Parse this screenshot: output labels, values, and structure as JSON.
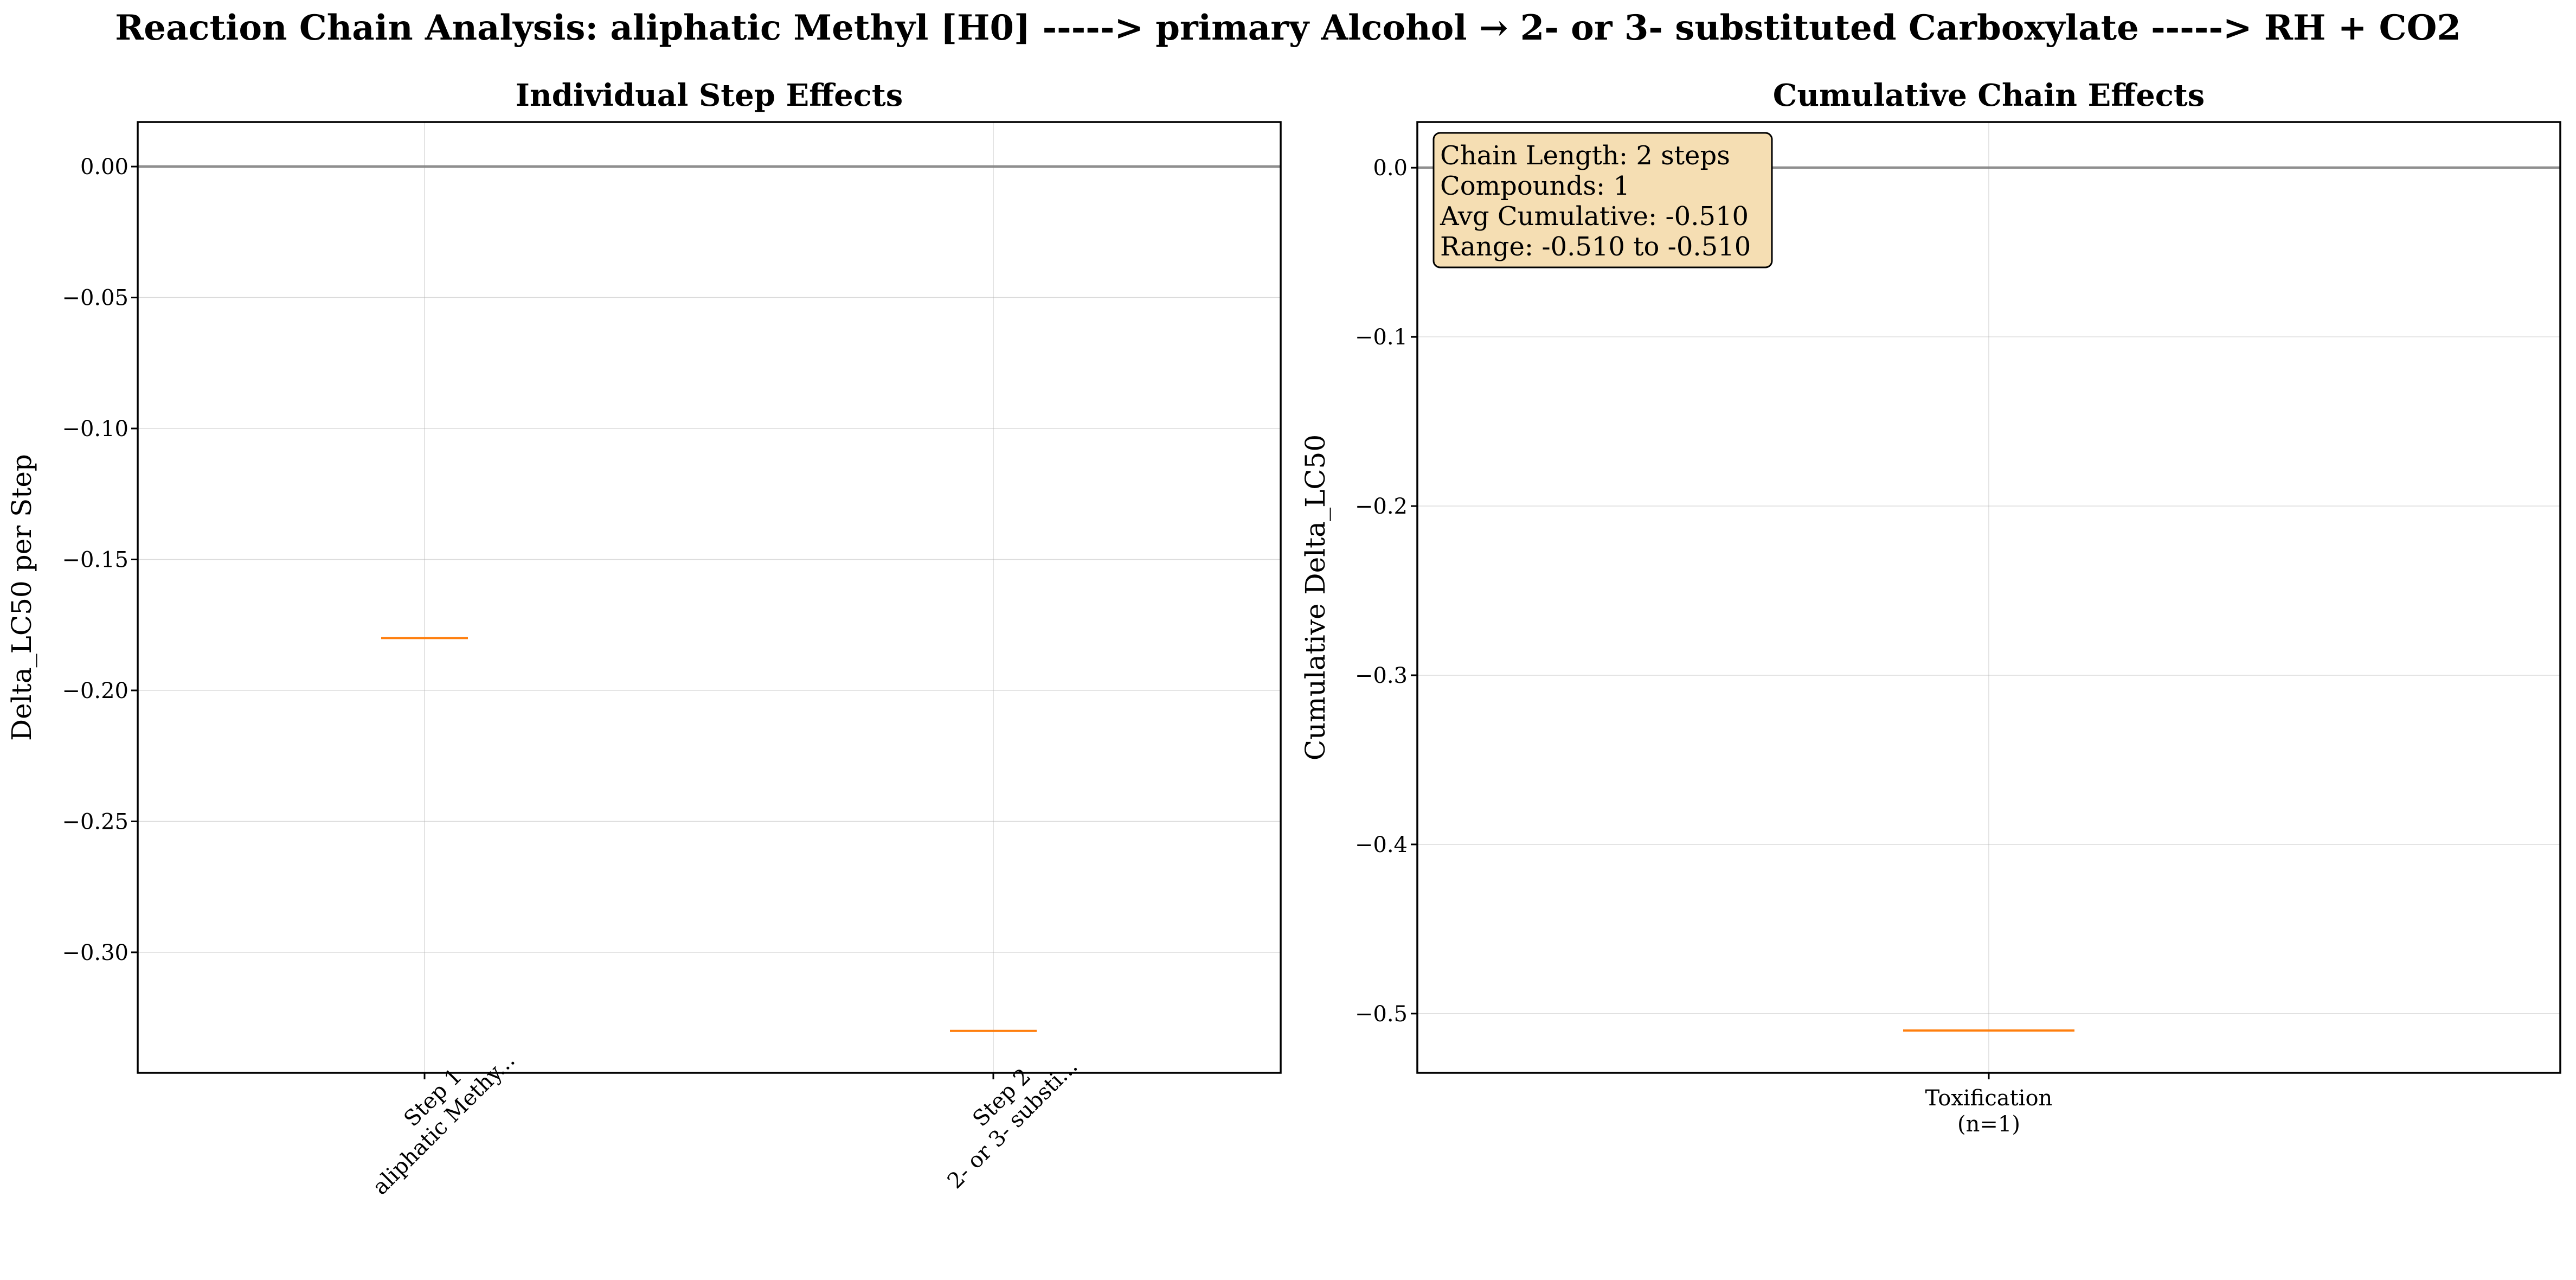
{
  "title": "Reaction Chain Analysis: aliphatic Methyl [H0] -----> primary Alcohol → 2- or 3- substituted Carboxylate -----> RH + CO2",
  "colors": {
    "median": "#ff7f0e",
    "zero_line": "#808080",
    "grid": "#b0b0b0",
    "stats_box": "#f5deb3"
  },
  "chart_data": [
    {
      "type": "box",
      "title": "Individual Step Effects",
      "xlabel": "",
      "ylabel": "Delta_LC50 per Step",
      "categories": [
        [
          "Step 1",
          "aliphatic Methy..."
        ],
        [
          "Step 2",
          "2- or 3- substi..."
        ]
      ],
      "values": [
        -0.18,
        -0.33
      ],
      "ylim": [
        -0.346,
        0.017
      ],
      "yticks": [
        0.0,
        -0.05,
        -0.1,
        -0.15,
        -0.2,
        -0.25,
        -0.3
      ],
      "ytick_labels": [
        "0.00",
        "−0.05",
        "−0.10",
        "−0.15",
        "−0.20",
        "−0.25",
        "−0.30"
      ],
      "reference_line": 0,
      "grid": true
    },
    {
      "type": "box",
      "title": "Cumulative Chain Effects",
      "xlabel": "",
      "ylabel": "Cumulative Delta_LC50",
      "categories": [
        [
          "Toxification",
          "(n=1)"
        ]
      ],
      "values": [
        -0.51
      ],
      "ylim": [
        -0.535,
        0.027
      ],
      "yticks": [
        0.0,
        -0.1,
        -0.2,
        -0.3,
        -0.4,
        -0.5
      ],
      "ytick_labels": [
        "0.0",
        "−0.1",
        "−0.2",
        "−0.3",
        "−0.4",
        "−0.5"
      ],
      "reference_line": 0,
      "grid": true,
      "stats_box": {
        "position": "top-left",
        "lines": [
          "Chain Length: 2 steps",
          "Compounds: 1",
          "Avg Cumulative: -0.510",
          "Range: -0.510 to -0.510"
        ]
      }
    }
  ]
}
